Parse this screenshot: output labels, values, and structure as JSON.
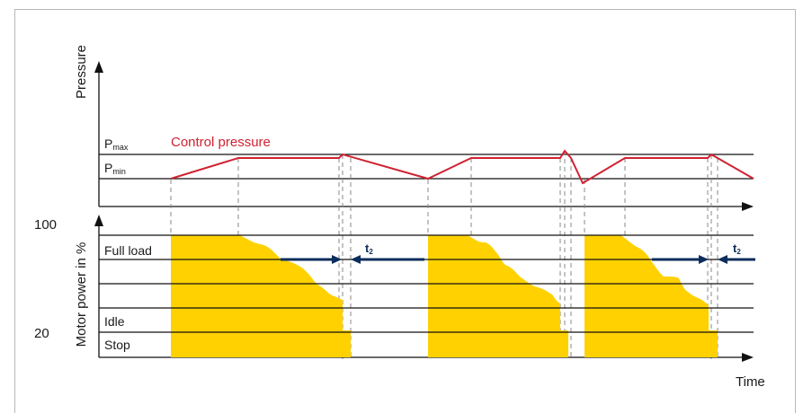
{
  "title": "",
  "colors": {
    "pressure_line": "#d02232",
    "motor_fill": "#ffd100",
    "arrow": "#0b2d5b",
    "axis": "#111111",
    "guide": "#8a8a8a"
  },
  "pressure_panel": {
    "axis_label": "Pressure",
    "pmax_main": "P",
    "pmax_sub": "max",
    "pmin_main": "P",
    "pmin_sub": "min",
    "series_label": "Control pressure"
  },
  "motor_panel": {
    "axis_label": "Motor power in %",
    "value_top": "100",
    "value_bottom": "20",
    "levels": [
      "Full load",
      "Idle",
      "Stop"
    ]
  },
  "x_axis_label": "Time",
  "t2_label_main": "t",
  "t2_label_sub": "2"
}
